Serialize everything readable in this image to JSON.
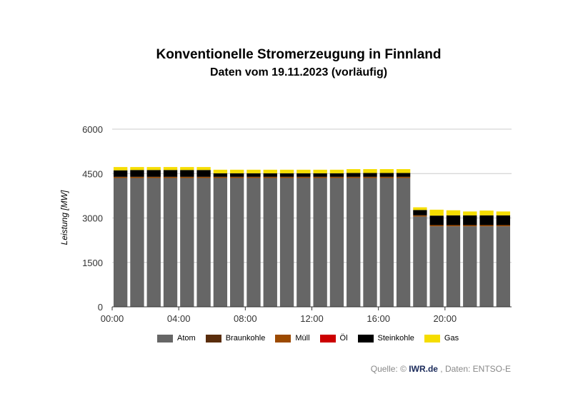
{
  "header": {
    "title": "Konventionelle Stromerzeugung in Finnland",
    "subtitle": "Daten vom 19.11.2023 (vorläufig)"
  },
  "source": {
    "prefix": "Quelle: ©",
    "brand": "IWR.de",
    "suffix": ", Daten: ENTSO-E"
  },
  "chart_data": {
    "type": "bar",
    "stacked": true,
    "ylabel": "Leistung [MW]",
    "ylim": [
      0,
      6000
    ],
    "yticks": [
      "0",
      "1500",
      "3000",
      "4500",
      "6000"
    ],
    "xtick_labels": [
      "00:00",
      "04:00",
      "08:00",
      "12:00",
      "16:00",
      "20:00"
    ],
    "xtick_positions": [
      0,
      4,
      8,
      12,
      16,
      20
    ],
    "categories": [
      "00:00",
      "01:00",
      "02:00",
      "03:00",
      "04:00",
      "05:00",
      "06:00",
      "07:00",
      "08:00",
      "09:00",
      "10:00",
      "11:00",
      "12:00",
      "13:00",
      "14:00",
      "15:00",
      "16:00",
      "17:00",
      "18:00",
      "19:00",
      "20:00",
      "21:00",
      "22:00",
      "23:00"
    ],
    "grid": true,
    "legend_position": "bottom",
    "series": [
      {
        "name": "Atom",
        "color": "#666666",
        "values": [
          4350,
          4350,
          4350,
          4350,
          4350,
          4350,
          4350,
          4350,
          4350,
          4350,
          4350,
          4350,
          4350,
          4350,
          4350,
          4350,
          4350,
          4350,
          3050,
          2720,
          2720,
          2720,
          2720,
          2720
        ]
      },
      {
        "name": "Braunkohle",
        "color": "#5a2d0c",
        "values": [
          0,
          0,
          0,
          0,
          0,
          0,
          0,
          0,
          0,
          0,
          0,
          0,
          0,
          0,
          0,
          0,
          0,
          0,
          0,
          0,
          0,
          0,
          0,
          0
        ]
      },
      {
        "name": "Müll",
        "color": "#9c4a00",
        "values": [
          40,
          40,
          40,
          40,
          40,
          40,
          40,
          40,
          40,
          40,
          40,
          40,
          40,
          40,
          40,
          40,
          40,
          40,
          40,
          40,
          40,
          40,
          40,
          40
        ]
      },
      {
        "name": "Öl",
        "color": "#cc0000",
        "values": [
          0,
          0,
          0,
          0,
          0,
          0,
          0,
          0,
          0,
          0,
          0,
          0,
          0,
          0,
          0,
          0,
          0,
          0,
          0,
          0,
          0,
          0,
          0,
          0
        ]
      },
      {
        "name": "Steinkohle",
        "color": "#000000",
        "values": [
          220,
          230,
          230,
          230,
          230,
          230,
          120,
          120,
          120,
          120,
          120,
          120,
          120,
          120,
          130,
          130,
          130,
          130,
          180,
          320,
          330,
          330,
          330,
          330
        ]
      },
      {
        "name": "Gas",
        "color": "#f5dd00",
        "values": [
          110,
          100,
          100,
          100,
          100,
          100,
          120,
          120,
          120,
          120,
          120,
          120,
          120,
          120,
          130,
          130,
          130,
          130,
          90,
          200,
          170,
          130,
          160,
          130
        ]
      }
    ]
  }
}
